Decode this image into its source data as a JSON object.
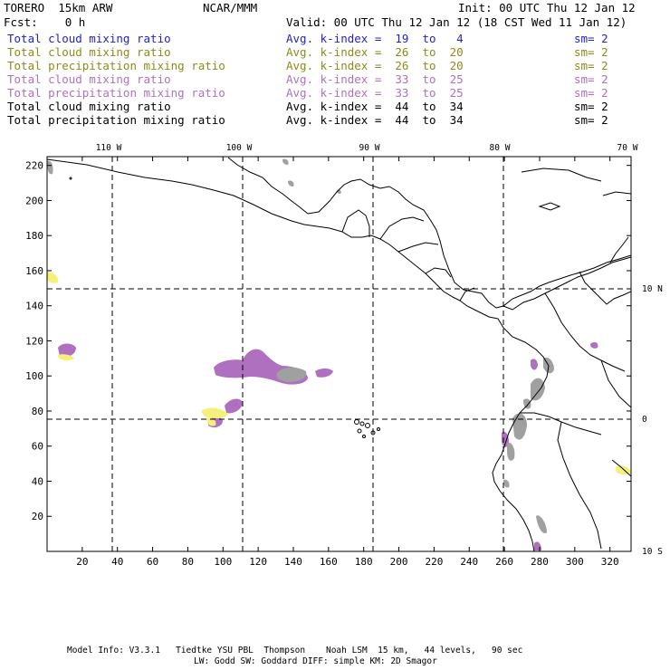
{
  "header": {
    "model": "TORERO  15km ARW",
    "center": "NCAR/MMM",
    "init": "Init: 00 UTC Thu 12 Jan 12",
    "fcst": "Fcst:    0 h",
    "valid": "Valid: 00 UTC Thu 12 Jan 12 (18 CST Wed 11 Jan 12)"
  },
  "legend_rows": [
    {
      "field": "Total cloud mixing ratio",
      "index": "Avg. k-index =  19  to   4",
      "sm": "sm= 2",
      "color": "#2222cc"
    },
    {
      "field": "Total cloud mixing ratio",
      "index": "Avg. k-index =  26  to  20",
      "sm": "sm= 2",
      "color": "#8c8c1a"
    },
    {
      "field": "Total precipitation mixing ratio",
      "index": "Avg. k-index =  26  to  20",
      "sm": "sm= 2",
      "color": "#8c8c1a"
    },
    {
      "field": "Total cloud mixing ratio",
      "index": "Avg. k-index =  33  to  25",
      "sm": "sm= 2",
      "color": "#b070c0"
    },
    {
      "field": "Total precipitation mixing ratio",
      "index": "Avg. k-index =  33  to  25",
      "sm": "sm= 2",
      "color": "#b070c0"
    },
    {
      "field": "Total cloud mixing ratio",
      "index": "Avg. k-index =  44  to  34",
      "sm": "sm= 2",
      "color": "#000000"
    },
    {
      "field": "Total precipitation mixing ratio",
      "index": "Avg. k-index =  44  to  34",
      "sm": "sm= 2",
      "color": "#000000"
    }
  ],
  "map": {
    "grid_x_ticks": [
      20,
      40,
      60,
      80,
      100,
      120,
      140,
      160,
      180,
      200,
      220,
      240,
      260,
      280,
      300,
      320
    ],
    "grid_y_ticks": [
      20,
      40,
      60,
      80,
      100,
      120,
      140,
      160,
      180,
      200,
      220
    ],
    "x_range": [
      0,
      332
    ],
    "y_range": [
      0,
      225
    ],
    "longitude_lines": [
      {
        "label": "110 W",
        "x": 40
      },
      {
        "label": "100 W",
        "x": 120
      },
      {
        "label": "90 W",
        "x": 200
      },
      {
        "label": "80 W",
        "x": 280
      },
      {
        "label": "70 W",
        "x": 360
      }
    ],
    "latitude_lines": [
      {
        "label": "10 N",
        "y": 152
      },
      {
        "label": "0",
        "y": 76
      },
      {
        "label": "10 S",
        "y": 0
      }
    ],
    "colors": {
      "purple": "#b070c0",
      "gray": "#a0a0a0",
      "yellow": "#f5f07a",
      "border": "#000000",
      "grid": "#000000"
    }
  },
  "footer": {
    "line1": "Model Info: V3.3.1   Tiedtke YSU PBL  Thompson    Noah LSM  15 km,   44 levels,   90 sec",
    "line2": "LW: Godd SW: Goddard DIFF: simple KM: 2D Smagor"
  }
}
